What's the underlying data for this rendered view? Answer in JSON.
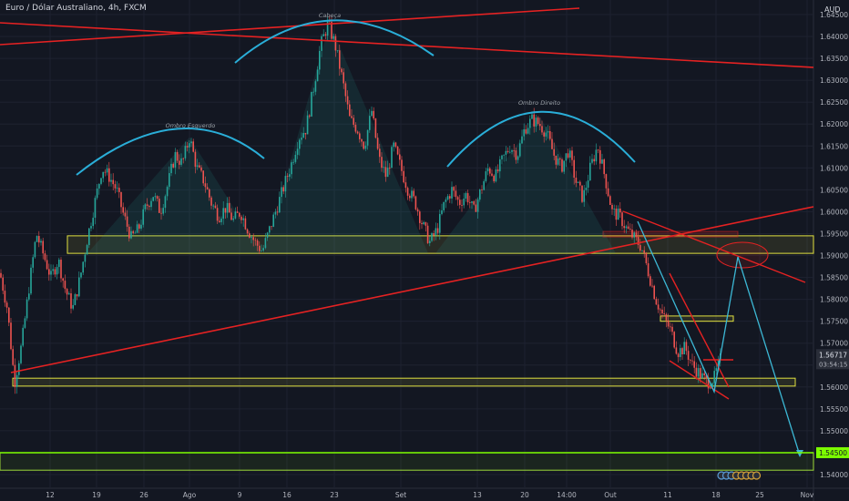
{
  "header": {
    "symbol_title": "Euro / Dólar Australiano, 4h, FXCM",
    "currency": "AUD"
  },
  "colors": {
    "background": "#131722",
    "bull": "#26a69a",
    "bear": "#ef5350",
    "trend_red": "#e52222",
    "arc_blue": "#2aaed8",
    "zone_yellow": "#e0e040",
    "target_green": "#7cfc00",
    "projection": "#3cb7d4"
  },
  "chart_data": {
    "type": "candlestick",
    "title": "Euro / Dólar Australiano, 4h, FXCM",
    "ylabel": "AUD",
    "ylim": [
      1.5375,
      1.6475
    ],
    "y_ticks": [
      "1.64500",
      "1.64000",
      "1.63500",
      "1.63000",
      "1.62500",
      "1.62000",
      "1.61500",
      "1.61000",
      "1.60500",
      "1.60000",
      "1.59500",
      "1.59000",
      "1.58500",
      "1.58000",
      "1.57500",
      "1.57000",
      "1.56500",
      "1.56000",
      "1.55500",
      "1.55000",
      "1.54500",
      "1.54000"
    ],
    "x_ticks": [
      "12",
      "19",
      "26",
      "Ago",
      "9",
      "16",
      "23",
      "Set",
      "13",
      "20",
      "14:00",
      "Out",
      "11",
      "18",
      "25",
      "Nov"
    ],
    "current_price": {
      "value": 1.56717,
      "label": "1.56717",
      "countdown": "03:54:15"
    },
    "target_price": {
      "value": 1.545,
      "label": "1.54500"
    },
    "annotations": [
      "Ombro Esquerdo",
      "Cabeça",
      "Ombro Direito"
    ],
    "pattern": "head-and-shoulders",
    "zones": [
      {
        "name": "neckline-zone",
        "from": 1.5905,
        "to": 1.5945
      },
      {
        "name": "support-zone",
        "from": 1.5602,
        "to": 1.562
      },
      {
        "name": "target-zone",
        "from": 1.541,
        "to": 1.545
      },
      {
        "name": "breakout-box",
        "from": 1.575,
        "to": 1.5762
      }
    ],
    "price_path": [
      [
        0,
        1.586
      ],
      [
        8,
        1.578
      ],
      [
        16,
        1.561
      ],
      [
        24,
        1.57
      ],
      [
        32,
        1.583
      ],
      [
        40,
        1.595
      ],
      [
        48,
        1.59
      ],
      [
        56,
        1.585
      ],
      [
        64,
        1.589
      ],
      [
        72,
        1.582
      ],
      [
        80,
        1.578
      ],
      [
        88,
        1.585
      ],
      [
        96,
        1.594
      ],
      [
        104,
        1.602
      ],
      [
        112,
        1.61
      ],
      [
        120,
        1.608
      ],
      [
        128,
        1.605
      ],
      [
        136,
        1.599
      ],
      [
        144,
        1.594
      ],
      [
        152,
        1.596
      ],
      [
        160,
        1.601
      ],
      [
        168,
        1.604
      ],
      [
        176,
        1.6
      ],
      [
        184,
        1.606
      ],
      [
        192,
        1.613
      ],
      [
        200,
        1.611
      ],
      [
        208,
        1.617
      ],
      [
        216,
        1.61
      ],
      [
        224,
        1.607
      ],
      [
        232,
        1.602
      ],
      [
        240,
        1.599
      ],
      [
        248,
        1.601
      ],
      [
        256,
        1.598
      ],
      [
        264,
        1.6
      ],
      [
        272,
        1.596
      ],
      [
        280,
        1.593
      ],
      [
        288,
        1.591
      ],
      [
        296,
        1.596
      ],
      [
        304,
        1.601
      ],
      [
        312,
        1.606
      ],
      [
        320,
        1.611
      ],
      [
        328,
        1.617
      ],
      [
        336,
        1.619
      ],
      [
        344,
        1.628
      ],
      [
        352,
        1.638
      ],
      [
        360,
        1.643
      ],
      [
        368,
        1.638
      ],
      [
        376,
        1.63
      ],
      [
        384,
        1.621
      ],
      [
        392,
        1.619
      ],
      [
        400,
        1.615
      ],
      [
        408,
        1.623
      ],
      [
        416,
        1.612
      ],
      [
        424,
        1.608
      ],
      [
        432,
        1.615
      ],
      [
        440,
        1.61
      ],
      [
        448,
        1.605
      ],
      [
        456,
        1.602
      ],
      [
        464,
        1.597
      ],
      [
        472,
        1.593
      ],
      [
        480,
        1.596
      ],
      [
        488,
        1.602
      ],
      [
        496,
        1.605
      ],
      [
        504,
        1.602
      ],
      [
        512,
        1.604
      ],
      [
        520,
        1.6
      ],
      [
        528,
        1.605
      ],
      [
        536,
        1.61
      ],
      [
        544,
        1.608
      ],
      [
        552,
        1.612
      ],
      [
        560,
        1.615
      ],
      [
        568,
        1.613
      ],
      [
        576,
        1.619
      ],
      [
        584,
        1.621
      ],
      [
        592,
        1.62
      ],
      [
        600,
        1.618
      ],
      [
        608,
        1.613
      ],
      [
        616,
        1.61
      ],
      [
        624,
        1.614
      ],
      [
        632,
        1.607
      ],
      [
        640,
        1.603
      ],
      [
        648,
        1.61
      ],
      [
        656,
        1.615
      ],
      [
        664,
        1.608
      ],
      [
        672,
        1.6
      ],
      [
        680,
        1.599
      ],
      [
        688,
        1.596
      ],
      [
        696,
        1.594
      ],
      [
        704,
        1.592
      ],
      [
        712,
        1.586
      ],
      [
        720,
        1.58
      ],
      [
        728,
        1.576
      ],
      [
        736,
        1.573
      ],
      [
        744,
        1.568
      ],
      [
        752,
        1.569
      ],
      [
        760,
        1.565
      ],
      [
        768,
        1.563
      ],
      [
        776,
        1.561
      ],
      [
        784,
        1.562
      ],
      [
        792,
        1.567
      ]
    ]
  }
}
